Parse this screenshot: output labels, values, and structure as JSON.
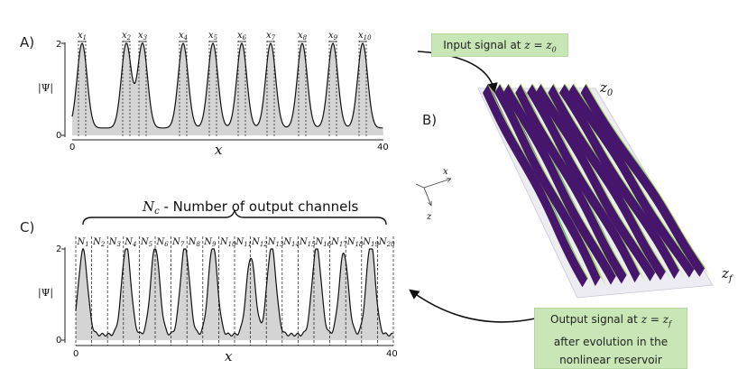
{
  "panel_a": {
    "label": "A)",
    "y_axis_label": "|Ψ|",
    "y_ticks": [
      "2",
      "0"
    ],
    "x_ticks": [
      "0",
      "40"
    ],
    "x_axis_label": "x",
    "markers": [
      {
        "base": "x",
        "sub": "1"
      },
      {
        "base": "x",
        "sub": "2"
      },
      {
        "base": "x",
        "sub": "3"
      },
      {
        "base": "x",
        "sub": "4"
      },
      {
        "base": "x",
        "sub": "5"
      },
      {
        "base": "x",
        "sub": "6"
      },
      {
        "base": "x",
        "sub": "7"
      },
      {
        "base": "x",
        "sub": "8"
      },
      {
        "base": "x",
        "sub": "9"
      },
      {
        "base": "x",
        "sub": "10"
      }
    ]
  },
  "panel_b": {
    "label": "B)",
    "z0_label": "z",
    "z0_sub": "0",
    "zf_label": "z",
    "zf_sub": "f",
    "axis_x": "x",
    "axis_z": "z"
  },
  "panel_c": {
    "label": "C)",
    "title_symbol": "N",
    "title_sub": "c",
    "title_text": " - Number of output channels",
    "y_axis_label": "|Ψ|",
    "y_ticks": [
      "2",
      "0"
    ],
    "x_ticks": [
      "0",
      "40"
    ],
    "x_axis_label": "x",
    "channels": [
      {
        "base": "N",
        "sub": "1"
      },
      {
        "base": "N",
        "sub": "2"
      },
      {
        "base": "N",
        "sub": "3"
      },
      {
        "base": "N",
        "sub": "4"
      },
      {
        "base": "N",
        "sub": "5"
      },
      {
        "base": "N",
        "sub": "6"
      },
      {
        "base": "N",
        "sub": "7"
      },
      {
        "base": "N",
        "sub": "8"
      },
      {
        "base": "N",
        "sub": "9"
      },
      {
        "base": "N",
        "sub": "10"
      },
      {
        "base": "N",
        "sub": "11"
      },
      {
        "base": "N",
        "sub": "12"
      },
      {
        "base": "N",
        "sub": "13"
      },
      {
        "base": "N",
        "sub": "14"
      },
      {
        "base": "N",
        "sub": "15"
      },
      {
        "base": "N",
        "sub": "16"
      },
      {
        "base": "N",
        "sub": "17"
      },
      {
        "base": "N",
        "sub": "18"
      },
      {
        "base": "N",
        "sub": "19"
      },
      {
        "base": "N",
        "sub": "20"
      }
    ]
  },
  "callouts": {
    "input": {
      "text": "Input signal at ",
      "math": "z = z",
      "sub": "0"
    },
    "output_line1_text": "Output signal at ",
    "output_line1_math": "z = z",
    "output_line1_sub": "f",
    "output_line2": "after evolution in the",
    "output_line3": "nonlinear reservoir"
  },
  "colors": {
    "callout_fill": "#c8e6b6",
    "signal_fill": "#d4d4d4",
    "surface_dark": "#46166c",
    "surface_mid": "#2c8d8c",
    "surface_light": "#9bd94a"
  }
}
